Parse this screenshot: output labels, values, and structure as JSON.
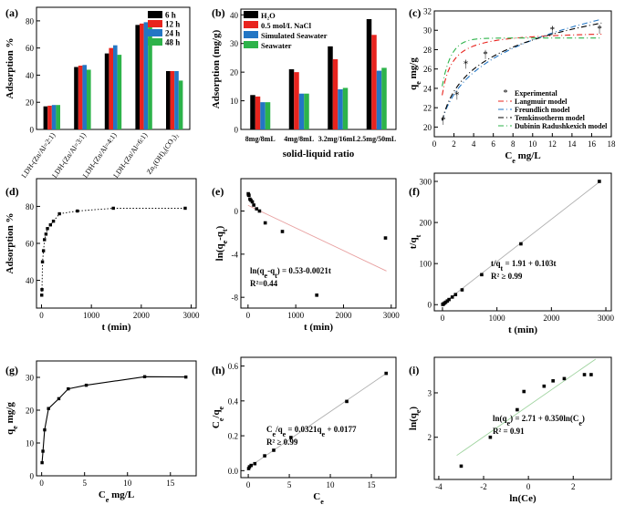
{
  "chart_data": [
    {
      "id": "a",
      "type": "bar",
      "label": "(a)",
      "categories": [
        "LDH-(Zn/Al=2:1)",
        "LDH-(Zn/Al=3:1)",
        "LDH-(Zn/Al=4:1)",
        "LDH-(Zn/Al=6:1)",
        "Zn₅(OH)₆(CO₃)₂"
      ],
      "tick_suffix": [
        "",
        "",
        "",
        "",
        ""
      ],
      "series": [
        {
          "name": "6 h",
          "color": "#000000",
          "values": [
            17,
            46,
            56,
            77,
            43
          ]
        },
        {
          "name": "12 h",
          "color": "#e8241e",
          "values": [
            17.5,
            47,
            60,
            78,
            43
          ]
        },
        {
          "name": "24 h",
          "color": "#2376c4",
          "values": [
            18,
            47.5,
            62,
            79,
            43
          ]
        },
        {
          "name": "48 h",
          "color": "#2db34a",
          "values": [
            18,
            44,
            55,
            78.5,
            36
          ]
        }
      ],
      "ylabel": "Adsorption %",
      "xlabel": "",
      "ylim": [
        0,
        90
      ],
      "yticks": [
        0,
        20,
        40,
        60,
        80
      ],
      "legend": "top-right"
    },
    {
      "id": "b",
      "type": "bar",
      "label": "(b)",
      "categories": [
        "8mg/8mL",
        "4mg/8mL",
        "3.2mg/16mL",
        "2.5mg/50mL"
      ],
      "series": [
        {
          "name": "H₂O",
          "color": "#000000",
          "values": [
            12,
            21,
            29,
            38.5
          ]
        },
        {
          "name": "0.5 mol/L NaCl",
          "color": "#e8241e",
          "values": [
            11.5,
            20,
            24.5,
            33
          ]
        },
        {
          "name": "Simulated Seawater",
          "color": "#2376c4",
          "values": [
            9.5,
            12.5,
            14,
            20.5
          ]
        },
        {
          "name": "Seawater",
          "color": "#2db34a",
          "values": [
            9.5,
            12.5,
            14.5,
            21.5
          ]
        }
      ],
      "ylabel": "Adsorption (mg/g)",
      "xlabel": "solid-liquid ratio",
      "ylim": [
        0,
        42
      ],
      "yticks": [
        0,
        10,
        20,
        30,
        40
      ],
      "legend": "top-left"
    },
    {
      "id": "c",
      "type": "scatter",
      "label": "(c)",
      "xlabel": "Ce mg/L",
      "ylabel": "qe mg/g",
      "xlim": [
        0,
        18
      ],
      "ylim": [
        19,
        32
      ],
      "xticks": [
        0,
        2,
        4,
        6,
        8,
        10,
        12,
        14,
        16,
        18
      ],
      "yticks": [
        20,
        22,
        24,
        26,
        28,
        30,
        32
      ],
      "points": {
        "name": "Experimental",
        "x": [
          0.9,
          2.3,
          3.2,
          5.2,
          12.0,
          16.8
        ],
        "y": [
          20.7,
          23.3,
          26.5,
          27.5,
          30.0,
          30.1
        ]
      },
      "models": [
        {
          "name": "Langmuir model",
          "color": "#e8241e",
          "dash": "6,3,1,3",
          "fn": "langmuir"
        },
        {
          "name": "Freundlich model",
          "color": "#2376c4",
          "dash": "6,3,1,3",
          "fn": "freundlich"
        },
        {
          "name": "Temkinsotherm model",
          "color": "#000000",
          "dash": "6,3,1,3",
          "fn": "temkin"
        },
        {
          "name": "Dubinin Radushkexich model",
          "color": "#2db34a",
          "dash": "6,3,1,3",
          "fn": "dr"
        }
      ],
      "legend": "bottom-right"
    },
    {
      "id": "d",
      "type": "line",
      "label": "(d)",
      "xlabel": "t (min)",
      "ylabel": "Adsorption %",
      "xlim": [
        -100,
        3100
      ],
      "ylim": [
        25,
        95
      ],
      "xticks": [
        0,
        1000,
        2000,
        3000
      ],
      "yticks": [
        40,
        60,
        80
      ],
      "x": [
        5,
        10,
        20,
        40,
        60,
        90,
        120,
        180,
        240,
        360,
        720,
        1440,
        2880
      ],
      "y": [
        32,
        35,
        50,
        56,
        62,
        65,
        68,
        70,
        72,
        76,
        77.5,
        79,
        79
      ]
    },
    {
      "id": "e",
      "type": "scatter",
      "label": "(e)",
      "xlabel": "t (min)",
      "ylabel": "ln(qe-qt)",
      "xlim": [
        -150,
        3100
      ],
      "ylim": [
        -9,
        3
      ],
      "xticks": [
        0,
        1000,
        2000,
        3000
      ],
      "yticks": [
        -8,
        -4,
        0
      ],
      "x": [
        5,
        10,
        20,
        40,
        60,
        90,
        120,
        180,
        240,
        360,
        720,
        1440,
        2880
      ],
      "y": [
        1.6,
        1.5,
        1.45,
        1.1,
        1.0,
        0.85,
        0.55,
        0.2,
        0.0,
        -1.1,
        -1.9,
        -7.8,
        -2.5
      ],
      "fit": {
        "intercept": 0.53,
        "slope": -0.0021
      },
      "annotation": {
        "eq": "ln(qe-qt) = 0.53-0.0021t",
        "r2": "R²=0.44"
      }
    },
    {
      "id": "f",
      "type": "scatter",
      "label": "(f)",
      "xlabel": "t (min)",
      "ylabel": "t/qt",
      "xlim": [
        -150,
        3100
      ],
      "ylim": [
        -15,
        320
      ],
      "xticks": [
        0,
        1000,
        2000,
        3000
      ],
      "yticks": [
        0,
        100,
        200,
        300
      ],
      "x": [
        5,
        10,
        20,
        40,
        60,
        90,
        120,
        180,
        240,
        360,
        720,
        1440,
        2880
      ],
      "y": [
        0.6,
        1.0,
        2.0,
        4.0,
        6.0,
        9.0,
        12.5,
        18.5,
        24.5,
        36,
        73,
        148,
        300
      ],
      "fit": {
        "intercept": 1.91,
        "slope": 0.103
      },
      "annotation": {
        "eq": "t/qt = 1.91 + 0.103t",
        "r2": "R² ≥ 0.99"
      }
    },
    {
      "id": "g",
      "type": "line",
      "label": "(g)",
      "xlabel": "Ce mg/L",
      "ylabel": "qe mg/g",
      "xlim": [
        -0.6,
        18
      ],
      "ylim": [
        0,
        35
      ],
      "xticks": [
        0,
        5,
        10,
        15
      ],
      "yticks": [
        0,
        10,
        20,
        30
      ],
      "x": [
        0.05,
        0.15,
        0.35,
        0.8,
        2.0,
        3.1,
        5.2,
        12.0,
        16.8
      ],
      "y": [
        4,
        7.5,
        14,
        20.5,
        23.5,
        26.5,
        27.6,
        30.2,
        30.1
      ]
    },
    {
      "id": "h",
      "type": "scatter",
      "label": "(h)",
      "xlabel": "Ce",
      "ylabel": "Ce/qe",
      "xlim": [
        -0.9,
        18
      ],
      "ylim": [
        -0.04,
        0.65
      ],
      "xticks": [
        0,
        5,
        10,
        15
      ],
      "yticks": [
        0.0,
        0.2,
        0.4,
        0.6
      ],
      "x": [
        0.05,
        0.15,
        0.35,
        0.8,
        2.0,
        3.1,
        5.2,
        12.0,
        16.8
      ],
      "y": [
        0.012,
        0.022,
        0.03,
        0.04,
        0.085,
        0.117,
        0.19,
        0.397,
        0.558
      ],
      "fit": {
        "intercept": 0.0177,
        "slope": 0.0321
      },
      "annotation": {
        "eq": "Ce/qe = 0.0321qe + 0.0177",
        "r2": "R² ≥ 0.99"
      }
    },
    {
      "id": "i",
      "type": "scatter",
      "label": "(i)",
      "xlabel": "ln(Ce)",
      "ylabel": "ln(qe)",
      "xlim": [
        -4.2,
        3.7
      ],
      "ylim": [
        1.05,
        3.8
      ],
      "xticks": [
        -4,
        -2,
        0,
        2
      ],
      "yticks": [
        2,
        3
      ],
      "x": [
        -3.0,
        -1.7,
        -0.5,
        -0.2,
        0.7,
        1.1,
        1.6,
        2.5,
        2.8
      ],
      "y": [
        1.35,
        2.0,
        2.62,
        3.03,
        3.15,
        3.27,
        3.32,
        3.41,
        3.41
      ],
      "fit": {
        "intercept": 2.71,
        "slope": 0.35
      },
      "annotation": {
        "eq": "ln(qe) = 2.71 + 0.350ln(Ce)",
        "r2": "R² = 0.91"
      }
    }
  ]
}
